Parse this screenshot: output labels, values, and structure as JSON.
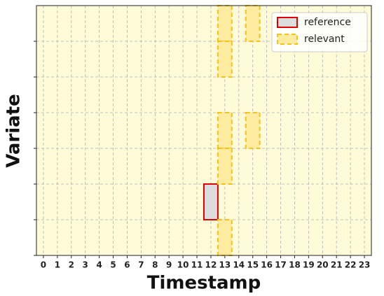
{
  "chart_data": {
    "type": "cells",
    "xlabel": "Timestamp",
    "ylabel": "Variate",
    "xlim": [
      -0.5,
      23.5
    ],
    "xticks": [
      0,
      1,
      2,
      3,
      4,
      5,
      6,
      7,
      8,
      9,
      10,
      11,
      12,
      13,
      14,
      15,
      16,
      17,
      18,
      19,
      20,
      21,
      22,
      23
    ],
    "ylim": [
      0,
      7
    ],
    "yticks": [
      0,
      1,
      2,
      3,
      4,
      5,
      6
    ],
    "grid": true,
    "legend": "upper right",
    "background": "#fffbd9",
    "series": [
      {
        "name": "reference",
        "color": "#e00000",
        "fill": "#dcdcdc",
        "dashed": false,
        "x": [
          12
        ],
        "y": [
          1
        ]
      },
      {
        "name": "relevant",
        "color": "#f5c21a",
        "fill": "#fdeba0",
        "dashed": true,
        "x": [
          13,
          13,
          13,
          13,
          13,
          15,
          15
        ],
        "y": [
          6,
          5,
          3,
          2,
          0,
          6,
          3
        ]
      }
    ]
  }
}
